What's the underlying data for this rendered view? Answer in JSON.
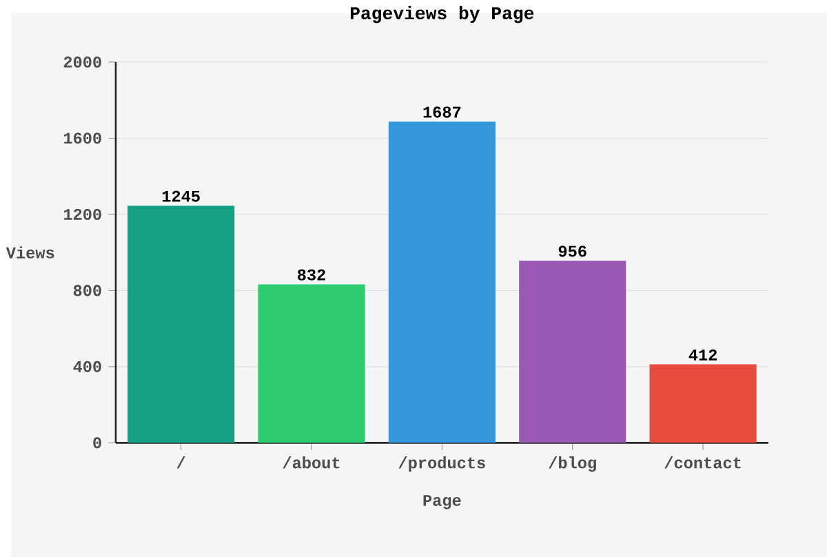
{
  "chart_data": {
    "type": "bar",
    "title": "Pageviews by Page",
    "xlabel": "Page",
    "ylabel": "Views",
    "categories": [
      "/",
      "/about",
      "/products",
      "/blog",
      "/contact"
    ],
    "values": [
      1245,
      832,
      1687,
      956,
      412
    ],
    "colors": [
      "#16a085",
      "#2ecc71",
      "#3498db",
      "#9b59b6",
      "#e74c3c"
    ],
    "ylim": [
      0,
      2000
    ],
    "yticks": [
      0,
      400,
      800,
      1200,
      1600,
      2000
    ],
    "grid": "y",
    "data_labels": true
  }
}
